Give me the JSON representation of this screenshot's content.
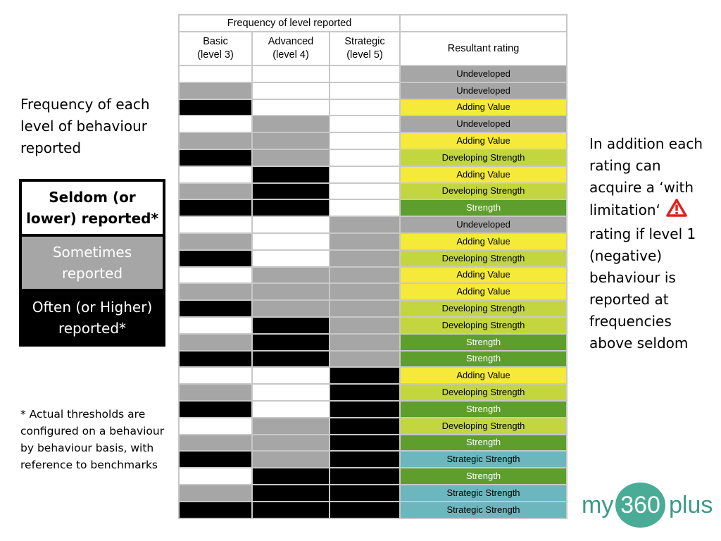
{
  "left_heading": "Frequency of each level of behaviour reported",
  "legend": {
    "seldom": "Seldom (or lower) reported*",
    "sometimes": "Sometimes reported",
    "often": "Often (or Higher) reported*"
  },
  "footnote": "* Actual thresholds are configured on a behaviour by behaviour basis, with reference to benchmarks",
  "right_text": {
    "line_a": "In addition each rating can acquire a ‘with limitation‘",
    "line_b": "rating if level 1 (negative) behaviour is reported at frequencies above seldom"
  },
  "icons": {
    "warning": "warning-triangle-icon"
  },
  "table": {
    "group_header": "Frequency of level reported",
    "columns": [
      {
        "line1": "Basic",
        "line2": "(level 3)"
      },
      {
        "line1": "Advanced",
        "line2": "(level 4)"
      },
      {
        "line1": "Strategic",
        "line2": "(level 5)"
      }
    ],
    "result_header": "Resultant rating",
    "rows": [
      {
        "levels": [
          "seldom",
          "seldom",
          "seldom"
        ],
        "rating": "Undeveloped"
      },
      {
        "levels": [
          "sometimes",
          "seldom",
          "seldom"
        ],
        "rating": "Undeveloped"
      },
      {
        "levels": [
          "often",
          "seldom",
          "seldom"
        ],
        "rating": "Adding Value"
      },
      {
        "levels": [
          "seldom",
          "sometimes",
          "seldom"
        ],
        "rating": "Undeveloped"
      },
      {
        "levels": [
          "sometimes",
          "sometimes",
          "seldom"
        ],
        "rating": "Adding Value"
      },
      {
        "levels": [
          "often",
          "sometimes",
          "seldom"
        ],
        "rating": "Developing Strength"
      },
      {
        "levels": [
          "seldom",
          "often",
          "seldom"
        ],
        "rating": "Adding Value"
      },
      {
        "levels": [
          "sometimes",
          "often",
          "seldom"
        ],
        "rating": "Developing Strength"
      },
      {
        "levels": [
          "often",
          "often",
          "seldom"
        ],
        "rating": "Strength"
      },
      {
        "levels": [
          "seldom",
          "seldom",
          "sometimes"
        ],
        "rating": "Undeveloped"
      },
      {
        "levels": [
          "sometimes",
          "seldom",
          "sometimes"
        ],
        "rating": "Adding Value"
      },
      {
        "levels": [
          "often",
          "seldom",
          "sometimes"
        ],
        "rating": "Developing Strength"
      },
      {
        "levels": [
          "seldom",
          "sometimes",
          "sometimes"
        ],
        "rating": "Adding Value"
      },
      {
        "levels": [
          "sometimes",
          "sometimes",
          "sometimes"
        ],
        "rating": "Adding Value"
      },
      {
        "levels": [
          "often",
          "sometimes",
          "sometimes"
        ],
        "rating": "Developing Strength"
      },
      {
        "levels": [
          "seldom",
          "often",
          "sometimes"
        ],
        "rating": "Developing Strength"
      },
      {
        "levels": [
          "sometimes",
          "often",
          "sometimes"
        ],
        "rating": "Strength"
      },
      {
        "levels": [
          "often",
          "often",
          "sometimes"
        ],
        "rating": "Strength"
      },
      {
        "levels": [
          "seldom",
          "seldom",
          "often"
        ],
        "rating": "Adding Value"
      },
      {
        "levels": [
          "sometimes",
          "seldom",
          "often"
        ],
        "rating": "Developing Strength"
      },
      {
        "levels": [
          "often",
          "seldom",
          "often"
        ],
        "rating": "Strength"
      },
      {
        "levels": [
          "seldom",
          "sometimes",
          "often"
        ],
        "rating": "Developing Strength"
      },
      {
        "levels": [
          "sometimes",
          "sometimes",
          "often"
        ],
        "rating": "Strength"
      },
      {
        "levels": [
          "often",
          "sometimes",
          "often"
        ],
        "rating": "Strategic Strength"
      },
      {
        "levels": [
          "seldom",
          "often",
          "often"
        ],
        "rating": "Strength"
      },
      {
        "levels": [
          "sometimes",
          "often",
          "often"
        ],
        "rating": "Strategic Strength"
      },
      {
        "levels": [
          "often",
          "often",
          "often"
        ],
        "rating": "Strategic Strength"
      }
    ]
  },
  "colors": {
    "level": {
      "seldom": "#ffffff",
      "sometimes": "#a6a6a6",
      "often": "#000000"
    },
    "rating": {
      "Undeveloped": "#a6a6a6",
      "Adding Value": "#f5e93a",
      "Developing Strength": "#c3d640",
      "Strength": "#5e9e2c",
      "Strategic Strength": "#6cb6bd"
    },
    "rating_text": {
      "Undeveloped": "#000000",
      "Adding Value": "#000000",
      "Developing Strength": "#000000",
      "Strength": "#ffffff",
      "Strategic Strength": "#000000"
    }
  },
  "logo": {
    "my": "my",
    "number": "360",
    "plus": "plus"
  }
}
